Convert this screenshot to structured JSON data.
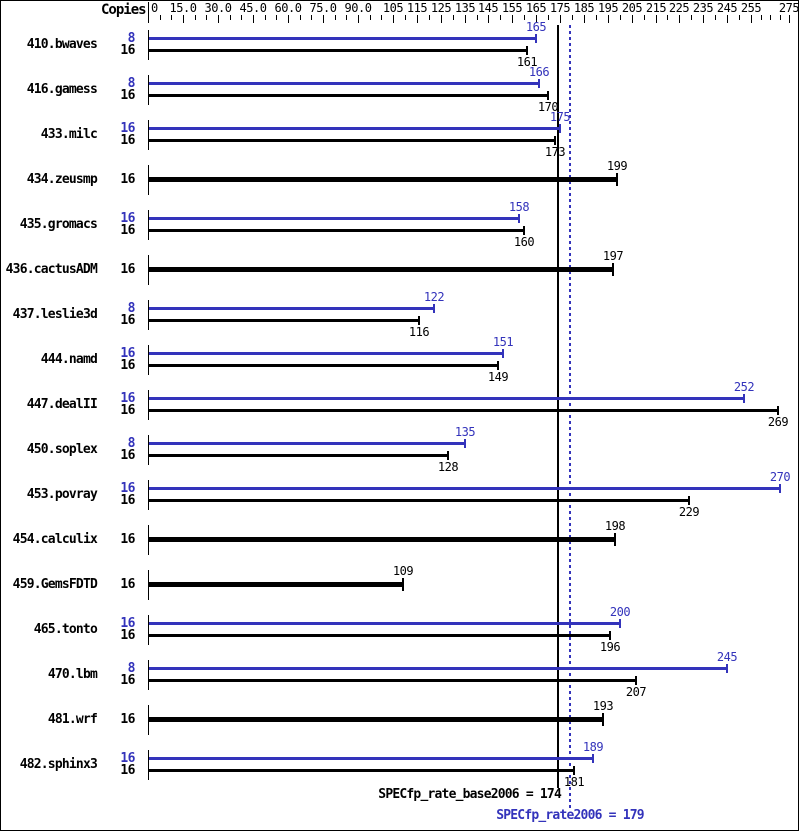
{
  "chart_data": {
    "type": "bar",
    "orientation": "horizontal",
    "copies_header": "Copies",
    "colors": {
      "peak": "#3333bb",
      "base": "#000000",
      "background": "#ffffff"
    },
    "x_axis": {
      "min": 0,
      "max": 275,
      "minor_tick_step": 5,
      "scale_note": "non-linear: 0-105 compressed, 105-255 linear, 255-275 compressed",
      "major_ticks": [
        {
          "value": 0,
          "label": "0"
        },
        {
          "value": 15,
          "label": "15.0"
        },
        {
          "value": 30,
          "label": "30.0"
        },
        {
          "value": 45,
          "label": "45.0"
        },
        {
          "value": 60,
          "label": "60.0"
        },
        {
          "value": 75,
          "label": "75.0"
        },
        {
          "value": 90,
          "label": "90.0"
        },
        {
          "value": 105,
          "label": "105"
        },
        {
          "value": 115,
          "label": "115"
        },
        {
          "value": 125,
          "label": "125"
        },
        {
          "value": 135,
          "label": "135"
        },
        {
          "value": 145,
          "label": "145"
        },
        {
          "value": 155,
          "label": "155"
        },
        {
          "value": 165,
          "label": "165"
        },
        {
          "value": 175,
          "label": "175"
        },
        {
          "value": 185,
          "label": "185"
        },
        {
          "value": 195,
          "label": "195"
        },
        {
          "value": 205,
          "label": "205"
        },
        {
          "value": 215,
          "label": "215"
        },
        {
          "value": 225,
          "label": "225"
        },
        {
          "value": 235,
          "label": "235"
        },
        {
          "value": 245,
          "label": "245"
        },
        {
          "value": 255,
          "label": "255"
        },
        {
          "value": 275,
          "label": "275"
        }
      ]
    },
    "benchmarks": [
      {
        "name": "410.bwaves",
        "peak": {
          "copies": "8",
          "value": 165
        },
        "base": {
          "copies": "16",
          "value": 161
        }
      },
      {
        "name": "416.gamess",
        "peak": {
          "copies": "8",
          "value": 166
        },
        "base": {
          "copies": "16",
          "value": 170
        }
      },
      {
        "name": "433.milc",
        "peak": {
          "copies": "16",
          "value": 175
        },
        "base": {
          "copies": "16",
          "value": 173
        }
      },
      {
        "name": "434.zeusmp",
        "base": {
          "copies": "16",
          "value": 199
        }
      },
      {
        "name": "435.gromacs",
        "peak": {
          "copies": "16",
          "value": 158
        },
        "base": {
          "copies": "16",
          "value": 160
        }
      },
      {
        "name": "436.cactusADM",
        "base": {
          "copies": "16",
          "value": 197
        }
      },
      {
        "name": "437.leslie3d",
        "peak": {
          "copies": "8",
          "value": 122
        },
        "base": {
          "copies": "16",
          "value": 116
        }
      },
      {
        "name": "444.namd",
        "peak": {
          "copies": "16",
          "value": 151
        },
        "base": {
          "copies": "16",
          "value": 149
        }
      },
      {
        "name": "447.dealII",
        "peak": {
          "copies": "16",
          "value": 252
        },
        "base": {
          "copies": "16",
          "value": 269
        }
      },
      {
        "name": "450.soplex",
        "peak": {
          "copies": "8",
          "value": 135
        },
        "base": {
          "copies": "16",
          "value": 128
        }
      },
      {
        "name": "453.povray",
        "peak": {
          "copies": "16",
          "value": 270
        },
        "base": {
          "copies": "16",
          "value": 229
        }
      },
      {
        "name": "454.calculix",
        "base": {
          "copies": "16",
          "value": 198
        }
      },
      {
        "name": "459.GemsFDTD",
        "base": {
          "copies": "16",
          "value": 109
        }
      },
      {
        "name": "465.tonto",
        "peak": {
          "copies": "16",
          "value": 200
        },
        "base": {
          "copies": "16",
          "value": 196
        }
      },
      {
        "name": "470.lbm",
        "peak": {
          "copies": "8",
          "value": 245
        },
        "base": {
          "copies": "16",
          "value": 207
        }
      },
      {
        "name": "481.wrf",
        "base": {
          "copies": "16",
          "value": 193
        }
      },
      {
        "name": "482.sphinx3",
        "peak": {
          "copies": "16",
          "value": 189
        },
        "base": {
          "copies": "16",
          "value": 181
        }
      }
    ],
    "reference_lines": [
      {
        "id": "base",
        "label": "SPECfp_rate_base2006 = 174",
        "value": 174,
        "style": "solid",
        "color": "#000000"
      },
      {
        "id": "peak",
        "label": "SPECfp_rate2006 = 179",
        "value": 179,
        "style": "dotted",
        "color": "#3333bb"
      }
    ]
  }
}
